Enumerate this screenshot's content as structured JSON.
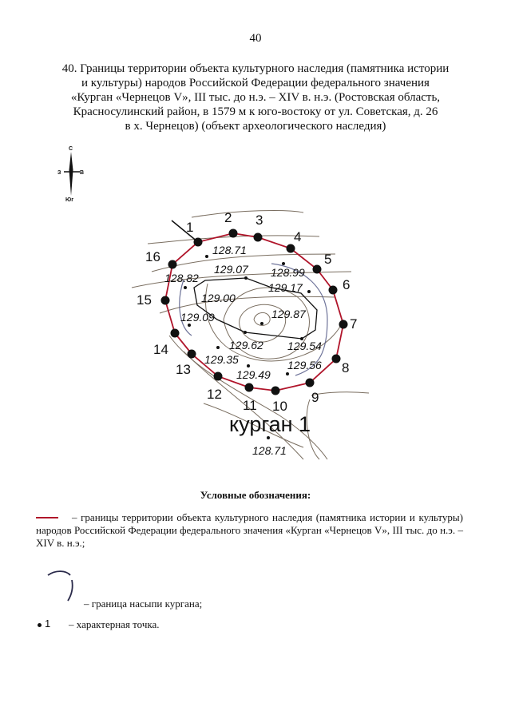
{
  "page_number": "40",
  "title_lines": [
    "40. Границы территории объекта культурного наследия (памятника истории",
    "и культуры) народов Российской Федерации федерального значения",
    "«Курган «Чернецов V», III тыс. до н.э. – XIV в. н.э. (Ростовская область,",
    "Красносулинский район, в 1579 м к юго-востоку от ул. Советская, д. 26",
    "в х. Чернецов) (объект археологического наследия)"
  ],
  "compass": {
    "north": "С",
    "south": "Юг",
    "west": "З",
    "east": "В"
  },
  "map": {
    "boundary_color": "#b0142a",
    "point_labels": [
      "1",
      "2",
      "3",
      "4",
      "5",
      "6",
      "7",
      "8",
      "9",
      "10",
      "11",
      "12",
      "13",
      "14",
      "15",
      "16"
    ],
    "elevations": [
      "128.71",
      "129.07",
      "128.99",
      "128.82",
      "129.17",
      "129.00",
      "129.87",
      "129.09",
      "129.62",
      "129.54",
      "129.35",
      "129.56",
      "129.49",
      "128.71"
    ],
    "mound_label": "курган 1"
  },
  "legend": {
    "title": "Условные обозначения:",
    "items": [
      {
        "symbol": "red-line",
        "text": "– границы территории объекта культурного наследия (памятника истории и культуры) народов Российской Федерации федерального значения «Курган «Чернецов V», III тыс. до н.э. – XIV в. н.э.;"
      },
      {
        "symbol": "mound-arc",
        "text": "– граница насыпи кургана;"
      },
      {
        "symbol": "point",
        "number": "1",
        "text": "– характерная точка."
      }
    ]
  }
}
